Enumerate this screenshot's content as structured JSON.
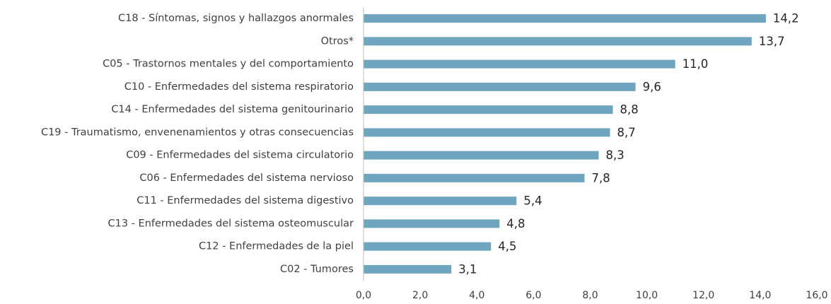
{
  "chart_data": {
    "type": "barh",
    "categories": [
      "C18 - Síntomas, signos y hallazgos anormales",
      "Otros*",
      "C05 - Trastornos mentales y del comportamiento",
      "C10 - Enfermedades del sistema respiratorio",
      "C14 - Enfermedades del sistema genitourinario",
      "C19 - Traumatismo, envenenamientos y otras consecuencias",
      "C09 - Enfermedades del sistema circulatorio",
      "C06 - Enfermedades del sistema nervioso",
      "C11 - Enfermedades del sistema digestivo",
      "C13 - Enfermedades del sistema osteomuscular",
      "C12 - Enfermedades de la piel",
      "C02 - Tumores"
    ],
    "values": [
      14.2,
      13.7,
      11.0,
      9.6,
      8.8,
      8.7,
      8.3,
      7.8,
      5.4,
      4.8,
      4.5,
      3.1
    ],
    "value_labels": [
      "14,2",
      "13,7",
      "11,0",
      "9,6",
      "8,8",
      "8,7",
      "8,3",
      "7,8",
      "5,4",
      "4,8",
      "4,5",
      "3,1"
    ],
    "color": "#6fa5bf",
    "xlim": [
      0,
      16
    ],
    "xticks": [
      {
        "value": 0,
        "label": "0,0"
      },
      {
        "value": 2,
        "label": "2,0"
      },
      {
        "value": 4,
        "label": "4,0"
      },
      {
        "value": 6,
        "label": "6,0"
      },
      {
        "value": 8,
        "label": "8,0"
      },
      {
        "value": 10,
        "label": "10,0"
      },
      {
        "value": 12,
        "label": "12,0"
      },
      {
        "value": 14,
        "label": "14,0"
      },
      {
        "value": 16,
        "label": "16,0"
      }
    ]
  }
}
